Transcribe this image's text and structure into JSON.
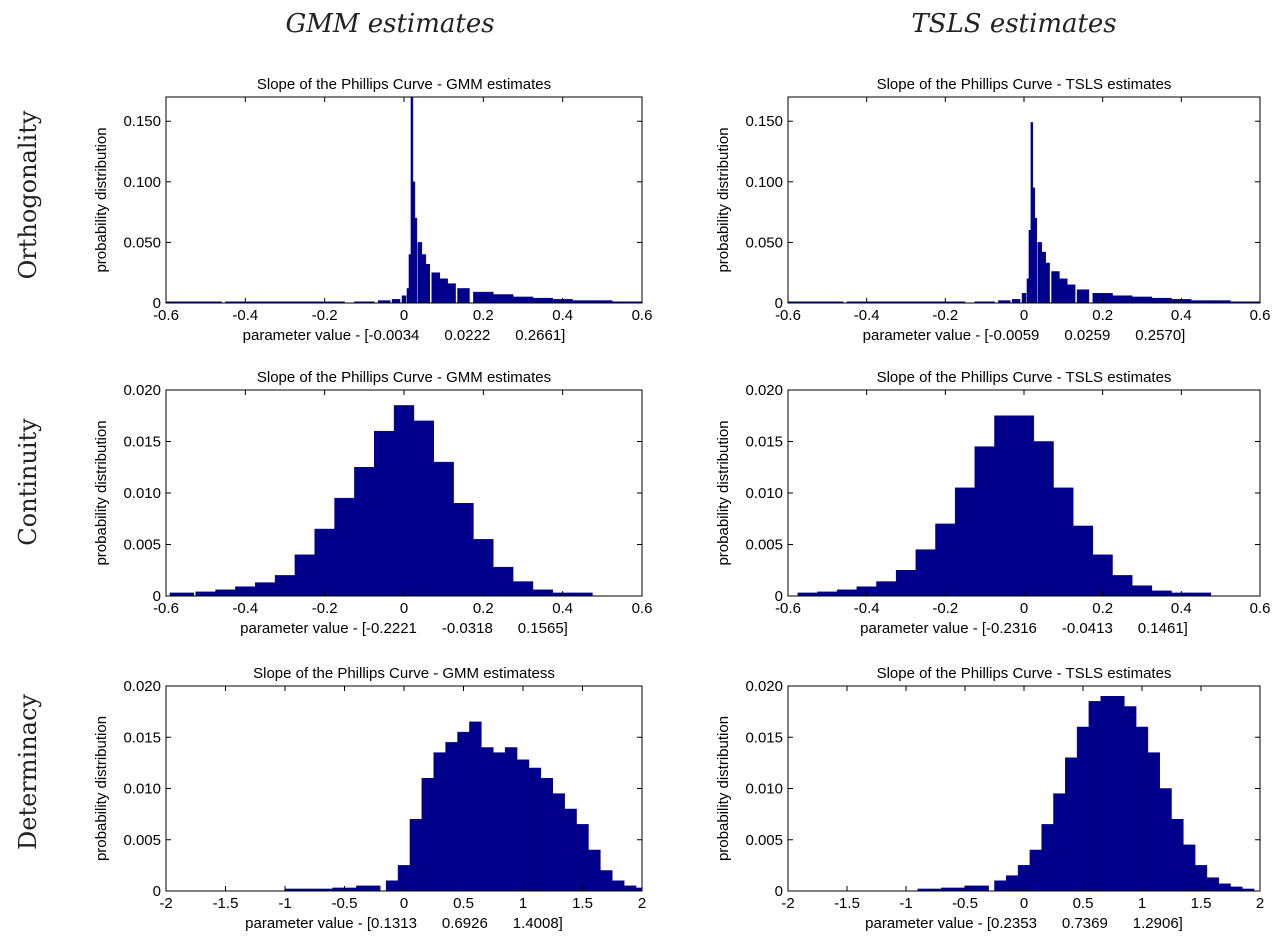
{
  "figure": {
    "column_headers": [
      "GMM estimates",
      "TSLS estimates"
    ],
    "row_headers": [
      "Orthogonality",
      "Continuity",
      "Determinacy"
    ],
    "bar_color": "#00008B"
  },
  "chart_data": [
    {
      "type": "bar",
      "title": "Slope of the Phillips Curve - GMM estimates",
      "ylabel": "probability distribution",
      "xlabel": "parameter value - [-0.0034      0.0222      0.2661]",
      "xlim": [
        -0.6,
        0.6
      ],
      "ylim": [
        0,
        0.17
      ],
      "xticks": [
        -0.6,
        -0.4,
        -0.2,
        0,
        0.2,
        0.4,
        0.6
      ],
      "xtick_labels": [
        "-0.6",
        "-0.4",
        "-0.2",
        "0",
        "0.2",
        "0.4",
        "0.6"
      ],
      "yticks": [
        0,
        0.05,
        0.1,
        0.15
      ],
      "ytick_labels": [
        "0",
        "0.050",
        "0.100",
        "0.150"
      ],
      "x": [
        -0.58,
        -0.5,
        -0.4,
        -0.3,
        -0.2,
        -0.1,
        -0.05,
        -0.02,
        0,
        0.01,
        0.015,
        0.02,
        0.025,
        0.03,
        0.04,
        0.05,
        0.06,
        0.08,
        0.1,
        0.12,
        0.15,
        0.2,
        0.25,
        0.3,
        0.35,
        0.4,
        0.45,
        0.5,
        0.55,
        0.6
      ],
      "values": [
        0.001,
        0.001,
        0.001,
        0.001,
        0.001,
        0.001,
        0.002,
        0.003,
        0.006,
        0.012,
        0.04,
        0.17,
        0.1,
        0.07,
        0.05,
        0.04,
        0.032,
        0.025,
        0.02,
        0.016,
        0.012,
        0.009,
        0.007,
        0.005,
        0.004,
        0.003,
        0.002,
        0.002,
        0.001,
        0.001
      ]
    },
    {
      "type": "bar",
      "title": "Slope of the Phillips Curve - TSLS estimates",
      "ylabel": "probability distribution",
      "xlabel": "parameter value - [-0.0059      0.0259      0.2570]",
      "xlim": [
        -0.6,
        0.6
      ],
      "ylim": [
        0,
        0.17
      ],
      "xticks": [
        -0.6,
        -0.4,
        -0.2,
        0,
        0.2,
        0.4,
        0.6
      ],
      "xtick_labels": [
        "-0.6",
        "-0.4",
        "-0.2",
        "0",
        "0.2",
        "0.4",
        "0.6"
      ],
      "yticks": [
        0,
        0.05,
        0.1,
        0.15
      ],
      "ytick_labels": [
        "0",
        "0.050",
        "0.100",
        "0.150"
      ],
      "x": [
        -0.58,
        -0.5,
        -0.4,
        -0.3,
        -0.2,
        -0.1,
        -0.05,
        -0.02,
        0,
        0.01,
        0.015,
        0.02,
        0.025,
        0.03,
        0.04,
        0.05,
        0.06,
        0.08,
        0.1,
        0.12,
        0.15,
        0.2,
        0.25,
        0.3,
        0.35,
        0.4,
        0.45,
        0.5,
        0.55,
        0.6
      ],
      "values": [
        0.001,
        0.001,
        0.001,
        0.001,
        0.001,
        0.001,
        0.002,
        0.003,
        0.008,
        0.02,
        0.06,
        0.149,
        0.095,
        0.07,
        0.05,
        0.042,
        0.033,
        0.026,
        0.02,
        0.015,
        0.011,
        0.008,
        0.006,
        0.005,
        0.004,
        0.003,
        0.002,
        0.002,
        0.001,
        0.001
      ]
    },
    {
      "type": "bar",
      "title": "Slope of the Phillips Curve - GMM estimates",
      "ylabel": "probability distribution",
      "xlabel": "parameter value - [-0.2221      -0.0318      0.1565]",
      "xlim": [
        -0.6,
        0.6
      ],
      "ylim": [
        0,
        0.02
      ],
      "xticks": [
        -0.6,
        -0.4,
        -0.2,
        0,
        0.2,
        0.4,
        0.6
      ],
      "xtick_labels": [
        "-0.6",
        "-0.4",
        "-0.2",
        "0",
        "0.2",
        "0.4",
        "0.6"
      ],
      "yticks": [
        0,
        0.005,
        0.01,
        0.015,
        0.02
      ],
      "ytick_labels": [
        "0",
        "0.005",
        "0.010",
        "0.015",
        "0.020"
      ],
      "x": [
        -0.56,
        -0.5,
        -0.45,
        -0.4,
        -0.35,
        -0.3,
        -0.25,
        -0.2,
        -0.15,
        -0.1,
        -0.05,
        0,
        0.05,
        0.1,
        0.15,
        0.2,
        0.25,
        0.3,
        0.35,
        0.4,
        0.45
      ],
      "values": [
        0.0003,
        0.0004,
        0.0006,
        0.0009,
        0.0013,
        0.002,
        0.004,
        0.0065,
        0.0095,
        0.0125,
        0.016,
        0.0185,
        0.017,
        0.013,
        0.009,
        0.0055,
        0.0028,
        0.0014,
        0.0006,
        0.0003,
        0.0003
      ]
    },
    {
      "type": "bar",
      "title": "Slope of the Phillips Curve - TSLS estimates",
      "ylabel": "probability distribution",
      "xlabel": "parameter value - [-0.2316      -0.0413      0.1461]",
      "xlim": [
        -0.6,
        0.6
      ],
      "ylim": [
        0,
        0.02
      ],
      "xticks": [
        -0.6,
        -0.4,
        -0.2,
        0,
        0.2,
        0.4,
        0.6
      ],
      "xtick_labels": [
        "-0.6",
        "-0.4",
        "-0.2",
        "0",
        "0.2",
        "0.4",
        "0.6"
      ],
      "yticks": [
        0,
        0.005,
        0.01,
        0.015,
        0.02
      ],
      "ytick_labels": [
        "0",
        "0.005",
        "0.010",
        "0.015",
        "0.020"
      ],
      "x": [
        -0.55,
        -0.5,
        -0.45,
        -0.4,
        -0.35,
        -0.3,
        -0.25,
        -0.2,
        -0.15,
        -0.1,
        -0.05,
        0,
        0.05,
        0.1,
        0.15,
        0.2,
        0.25,
        0.3,
        0.35,
        0.4,
        0.45
      ],
      "values": [
        0.0003,
        0.0004,
        0.0006,
        0.0009,
        0.0014,
        0.0025,
        0.0045,
        0.007,
        0.0105,
        0.0145,
        0.0175,
        0.0175,
        0.015,
        0.0105,
        0.0068,
        0.004,
        0.002,
        0.001,
        0.0005,
        0.0003,
        0.0003
      ]
    },
    {
      "type": "bar",
      "title": "Slope of the Phillips Curve - GMM estimatess",
      "ylabel": "probability distribution",
      "xlabel": "parameter value - [0.1313      0.6926      1.4008]",
      "xlim": [
        -2,
        2
      ],
      "ylim": [
        0,
        0.02
      ],
      "xticks": [
        -2,
        -1.5,
        -1,
        -0.5,
        0,
        0.5,
        1,
        1.5,
        2
      ],
      "xtick_labels": [
        "-2",
        "-1.5",
        "-1",
        "-0.5",
        "0",
        "0.5",
        "1",
        "1.5",
        "2"
      ],
      "yticks": [
        0,
        0.005,
        0.01,
        0.015,
        0.02
      ],
      "ytick_labels": [
        "0",
        "0.005",
        "0.010",
        "0.015",
        "0.020"
      ],
      "x": [
        -0.9,
        -0.7,
        -0.5,
        -0.3,
        -0.1,
        0,
        0.1,
        0.2,
        0.3,
        0.4,
        0.5,
        0.6,
        0.7,
        0.8,
        0.9,
        1,
        1.1,
        1.2,
        1.3,
        1.4,
        1.5,
        1.6,
        1.7,
        1.8,
        1.9,
        2
      ],
      "values": [
        0.0002,
        0.0002,
        0.0003,
        0.0005,
        0.001,
        0.0025,
        0.007,
        0.011,
        0.0135,
        0.0145,
        0.0155,
        0.0165,
        0.014,
        0.0135,
        0.014,
        0.0128,
        0.012,
        0.011,
        0.0095,
        0.008,
        0.0065,
        0.004,
        0.002,
        0.001,
        0.0005,
        0.0003
      ]
    },
    {
      "type": "bar",
      "title": "Slope of the Phillips Curve - TSLS estimates",
      "ylabel": "probability distribution",
      "xlabel": "parameter value - [0.2353      0.7369      1.2906]",
      "xlim": [
        -2,
        2
      ],
      "ylim": [
        0,
        0.02
      ],
      "xticks": [
        -2,
        -1.5,
        -1,
        -0.5,
        0,
        0.5,
        1,
        1.5,
        2
      ],
      "xtick_labels": [
        "-2",
        "-1.5",
        "-1",
        "-0.5",
        "0",
        "0.5",
        "1",
        "1.5",
        "2"
      ],
      "yticks": [
        0,
        0.005,
        0.01,
        0.015,
        0.02
      ],
      "ytick_labels": [
        "0",
        "0.005",
        "0.010",
        "0.015",
        "0.020"
      ],
      "x": [
        -0.8,
        -0.6,
        -0.4,
        -0.2,
        -0.1,
        0,
        0.1,
        0.2,
        0.3,
        0.4,
        0.5,
        0.6,
        0.7,
        0.8,
        0.9,
        1,
        1.1,
        1.2,
        1.3,
        1.4,
        1.5,
        1.6,
        1.7,
        1.8,
        1.9
      ],
      "values": [
        0.0002,
        0.0003,
        0.0005,
        0.001,
        0.0015,
        0.0025,
        0.004,
        0.0065,
        0.0095,
        0.013,
        0.016,
        0.0185,
        0.019,
        0.019,
        0.018,
        0.016,
        0.0135,
        0.01,
        0.007,
        0.0045,
        0.0025,
        0.0013,
        0.0007,
        0.0004,
        0.0002
      ]
    }
  ]
}
